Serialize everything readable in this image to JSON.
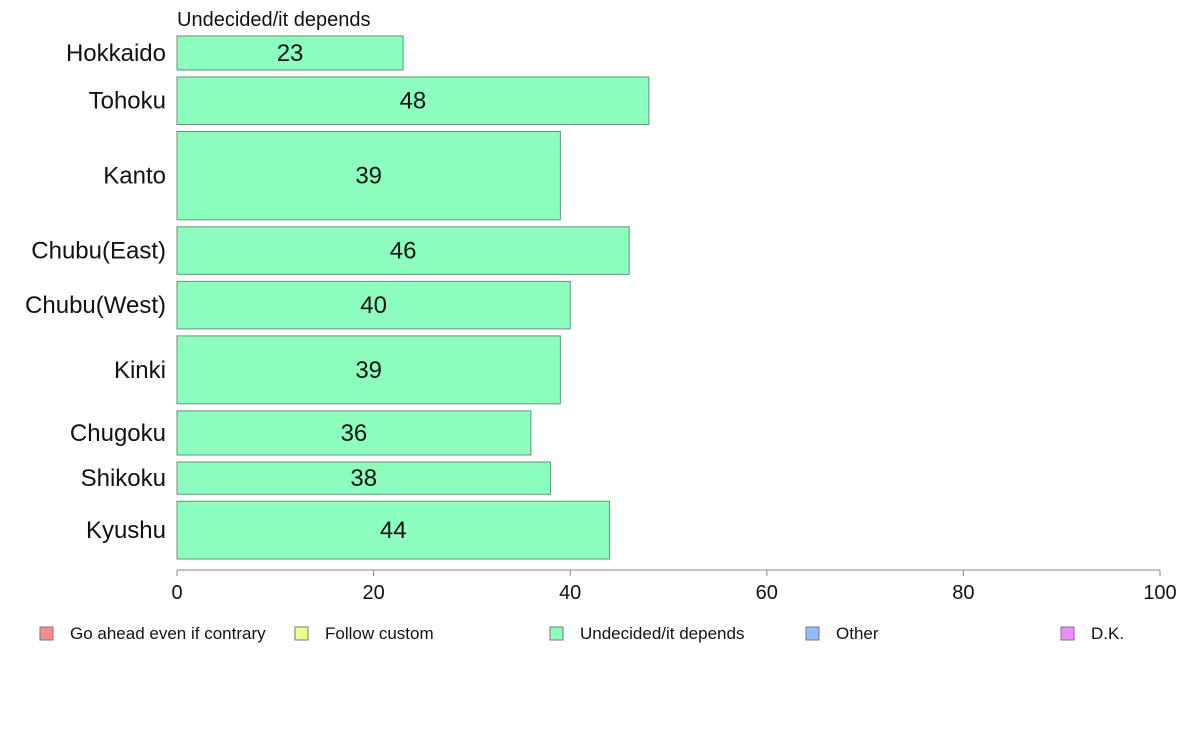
{
  "chart_data": {
    "type": "bar",
    "orientation": "horizontal",
    "title": "Undecided/it depends",
    "categories": [
      "Hokkaido",
      "Tohoku",
      "Kanto",
      "Chubu(East)",
      "Chubu(West)",
      "Kinki",
      "Chugoku",
      "Shikoku",
      "Kyushu"
    ],
    "bar_weights": [
      1,
      1.4,
      2.6,
      1.4,
      1.4,
      2.0,
      1.3,
      0.95,
      1.7
    ],
    "series": [
      {
        "name": "Undecided/it depends",
        "values": [
          23,
          48,
          39,
          46,
          40,
          39,
          36,
          38,
          44
        ],
        "color": "#8cffbf"
      }
    ],
    "value_labels": [
      "23",
      "48",
      "39",
      "46",
      "40",
      "39",
      "36",
      "38",
      "44"
    ],
    "xlim": [
      0,
      100
    ],
    "xticks": [
      0,
      20,
      40,
      60,
      80,
      100
    ],
    "xtick_labels": [
      "0",
      "20",
      "40",
      "60",
      "80",
      "100"
    ],
    "grid": false,
    "legend_position": "bottom",
    "legend": [
      {
        "label": "Go ahead even if contrary",
        "color": "#ff8c8c"
      },
      {
        "label": "Follow custom",
        "color": "#efff8c"
      },
      {
        "label": "Undecided/it depends",
        "color": "#8cffbf"
      },
      {
        "label": "Other",
        "color": "#8cbfff"
      },
      {
        "label": "D.K.",
        "color": "#ef8cff"
      }
    ]
  }
}
